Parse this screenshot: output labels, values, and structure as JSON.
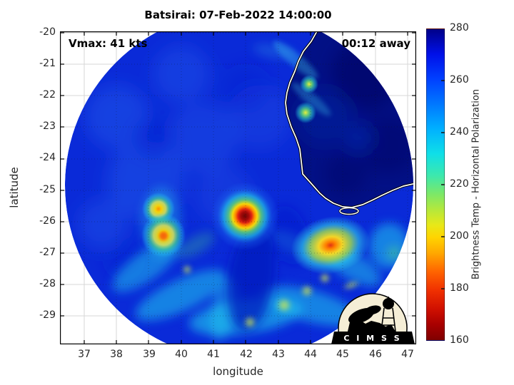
{
  "title": "Batsirai: 07-Feb-2022 14:00:00",
  "annotations": {
    "vmax": "Vmax: 41 kts",
    "eta": "00:12 away"
  },
  "axes": {
    "xlabel": "longitude",
    "ylabel": "latitude",
    "x_ticks": [
      "37",
      "38",
      "39",
      "40",
      "41",
      "42",
      "43",
      "44",
      "45",
      "46",
      "47"
    ],
    "y_ticks": [
      "-20",
      "-21",
      "-22",
      "-23",
      "-24",
      "-25",
      "-26",
      "-27",
      "-28",
      "-29"
    ]
  },
  "colorbar": {
    "label": "Brightness Temp - Horizontal Polarization",
    "ticks": [
      "280",
      "260",
      "240",
      "220",
      "200",
      "180",
      "160"
    ],
    "min_K": 160,
    "max_K": 280,
    "colormap": "jet-reversed (low Tb = dark red, high Tb = dark blue)"
  },
  "logo": {
    "text": "C I M S S"
  },
  "colors": {
    "ocean_background": "#0a2ad8",
    "land_high_tb": "#021086",
    "coastline": "#ffffff",
    "eye_core": "#700505",
    "convection_yellow": "#ffe100",
    "rainband_cyan": "#22c8ee"
  },
  "chart_data": {
    "type": "heatmap",
    "title": "Batsirai: 07-Feb-2022 14:00:00",
    "xlabel": "longitude",
    "ylabel": "latitude",
    "xlim": [
      36.3,
      47.3
    ],
    "ylim": [
      -29.9,
      -20.0
    ],
    "x_ticks": [
      37,
      38,
      39,
      40,
      41,
      42,
      43,
      44,
      45,
      46,
      47
    ],
    "y_ticks": [
      -20,
      -21,
      -22,
      -23,
      -24,
      -25,
      -26,
      -27,
      -28,
      -29
    ],
    "colorbar_range_K": [
      160,
      280
    ],
    "colorbar_ticks_K": [
      160,
      180,
      200,
      220,
      240,
      260,
      280
    ],
    "swath": {
      "shape": "circle",
      "center_lon": 41.8,
      "center_lat": -24.9,
      "radius_deg": 5.4
    },
    "annotations": [
      "Vmax: 41 kts",
      "00:12 away"
    ],
    "features": [
      {
        "desc": "storm core / coldest convection (dark red spot)",
        "lon": 42.0,
        "lat": -25.8,
        "tb_K": 165
      },
      {
        "desc": "western convective cell (yellow)",
        "lon": 39.3,
        "lat": -25.6,
        "tb_K": 205
      },
      {
        "desc": "western convective cell (orange core)",
        "lon": 39.45,
        "lat": -26.45,
        "tb_K": 192
      },
      {
        "desc": "southeastern convective area (orange/red core, broad yellow)",
        "lon": 44.6,
        "lat": -26.75,
        "tb_K": 188
      },
      {
        "desc": "coastal shower near Madagascar coast",
        "lon": 43.95,
        "lat": -21.6,
        "tb_K": 215
      },
      {
        "desc": "coastal shower near Madagascar coast",
        "lon": 43.85,
        "lat": -22.5,
        "tb_K": 215
      },
      {
        "desc": "Madagascar land (NE of white coastline), warm",
        "lon": 45.5,
        "lat": -22.0,
        "tb_K": 278
      },
      {
        "desc": "open-ocean background",
        "lon": 38.5,
        "lat": -23.0,
        "tb_K": 266
      },
      {
        "desc": "spiral rainbands, southern semicircle (cyan/green with yellow patches)",
        "lon": 42.5,
        "lat": -28.3,
        "tb_K": 235
      }
    ]
  }
}
